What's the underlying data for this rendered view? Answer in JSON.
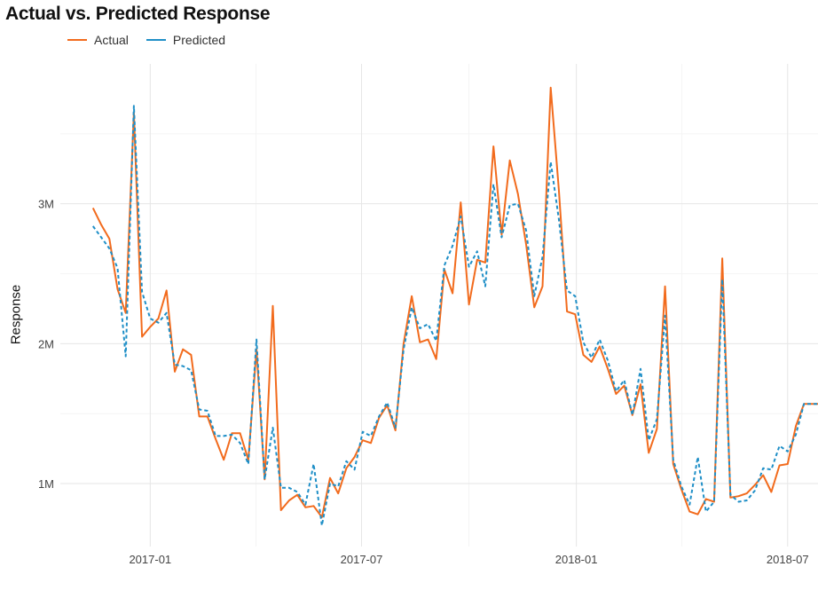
{
  "chart_data": {
    "type": "line",
    "title": "Actual vs. Predicted Response",
    "xlabel": "",
    "ylabel": "Response",
    "x_tick_labels": [
      "2017-01",
      "2017-07",
      "2018-01",
      "2018-07"
    ],
    "x_tick_dates": [
      "2017-01-01",
      "2017-07-01",
      "2018-01-01",
      "2018-07-01"
    ],
    "y_tick_labels": [
      "1M",
      "2M",
      "3M"
    ],
    "y_tick_values": [
      1000000,
      2000000,
      3000000
    ],
    "ylim": [
      550000,
      4000000
    ],
    "xlim": [
      "2016-10-16",
      "2018-07-27"
    ],
    "grid": true,
    "legend_position": "top-left",
    "x": [
      "2016-11-13",
      "2016-11-20",
      "2016-11-27",
      "2016-12-04",
      "2016-12-11",
      "2016-12-18",
      "2016-12-25",
      "2017-01-01",
      "2017-01-08",
      "2017-01-15",
      "2017-01-22",
      "2017-01-29",
      "2017-02-05",
      "2017-02-12",
      "2017-02-19",
      "2017-02-26",
      "2017-03-05",
      "2017-03-12",
      "2017-03-19",
      "2017-03-26",
      "2017-04-02",
      "2017-04-09",
      "2017-04-16",
      "2017-04-23",
      "2017-04-30",
      "2017-05-07",
      "2017-05-14",
      "2017-05-21",
      "2017-05-28",
      "2017-06-04",
      "2017-06-11",
      "2017-06-18",
      "2017-06-25",
      "2017-07-02",
      "2017-07-09",
      "2017-07-16",
      "2017-07-23",
      "2017-07-30",
      "2017-08-06",
      "2017-08-13",
      "2017-08-20",
      "2017-08-27",
      "2017-09-03",
      "2017-09-10",
      "2017-09-17",
      "2017-09-24",
      "2017-10-01",
      "2017-10-08",
      "2017-10-15",
      "2017-10-22",
      "2017-10-29",
      "2017-11-05",
      "2017-11-12",
      "2017-11-19",
      "2017-11-26",
      "2017-12-03",
      "2017-12-10",
      "2017-12-17",
      "2017-12-24",
      "2017-12-31",
      "2018-01-07",
      "2018-01-14",
      "2018-01-21",
      "2018-01-28",
      "2018-02-04",
      "2018-02-11",
      "2018-02-18",
      "2018-02-25",
      "2018-03-04",
      "2018-03-11",
      "2018-03-18",
      "2018-03-25",
      "2018-04-01",
      "2018-04-08",
      "2018-04-15",
      "2018-04-22",
      "2018-04-29",
      "2018-05-06",
      "2018-05-13",
      "2018-05-20",
      "2018-05-27",
      "2018-06-03",
      "2018-06-10",
      "2018-06-17",
      "2018-06-24",
      "2018-07-01",
      "2018-07-08",
      "2018-07-15",
      "2018-07-22",
      "2018-07-29"
    ],
    "series": [
      {
        "name": "Actual",
        "color": "#f26b1d",
        "style": "solid",
        "values": [
          2970000,
          2850000,
          2750000,
          2390000,
          2220000,
          3650000,
          2050000,
          2120000,
          2180000,
          2380000,
          1800000,
          1960000,
          1920000,
          1480000,
          1480000,
          1320000,
          1170000,
          1360000,
          1360000,
          1170000,
          1960000,
          1030000,
          2270000,
          810000,
          880000,
          920000,
          830000,
          840000,
          760000,
          1040000,
          930000,
          1110000,
          1190000,
          1310000,
          1290000,
          1470000,
          1560000,
          1380000,
          2000000,
          2340000,
          2010000,
          2030000,
          1890000,
          2530000,
          2360000,
          3010000,
          2280000,
          2600000,
          2580000,
          3410000,
          2780000,
          3310000,
          3070000,
          2710000,
          2260000,
          2410000,
          3830000,
          3100000,
          2230000,
          2210000,
          1920000,
          1870000,
          1980000,
          1820000,
          1640000,
          1700000,
          1490000,
          1710000,
          1220000,
          1390000,
          2410000,
          1140000,
          960000,
          800000,
          780000,
          890000,
          870000,
          2610000,
          900000,
          910000,
          930000,
          990000,
          1060000,
          940000,
          1130000,
          1140000,
          1410000,
          1570000,
          1570000,
          1570000
        ]
      },
      {
        "name": "Predicted",
        "color": "#1f8fc7",
        "style": "dashed",
        "values": [
          2840000,
          2760000,
          2680000,
          2540000,
          1910000,
          3700000,
          2370000,
          2180000,
          2150000,
          2220000,
          1850000,
          1840000,
          1810000,
          1530000,
          1520000,
          1340000,
          1340000,
          1350000,
          1290000,
          1140000,
          2030000,
          1030000,
          1400000,
          970000,
          970000,
          940000,
          850000,
          1140000,
          700000,
          1000000,
          980000,
          1160000,
          1100000,
          1370000,
          1340000,
          1480000,
          1580000,
          1400000,
          1960000,
          2260000,
          2110000,
          2140000,
          2020000,
          2560000,
          2700000,
          2910000,
          2550000,
          2660000,
          2410000,
          3140000,
          2760000,
          2990000,
          3000000,
          2810000,
          2340000,
          2620000,
          3300000,
          2890000,
          2380000,
          2340000,
          2010000,
          1900000,
          2030000,
          1880000,
          1660000,
          1740000,
          1490000,
          1820000,
          1310000,
          1460000,
          2200000,
          1170000,
          980000,
          850000,
          1190000,
          800000,
          870000,
          2460000,
          920000,
          870000,
          880000,
          950000,
          1110000,
          1100000,
          1270000,
          1230000,
          1350000,
          1570000,
          1570000,
          1570000
        ]
      }
    ]
  }
}
